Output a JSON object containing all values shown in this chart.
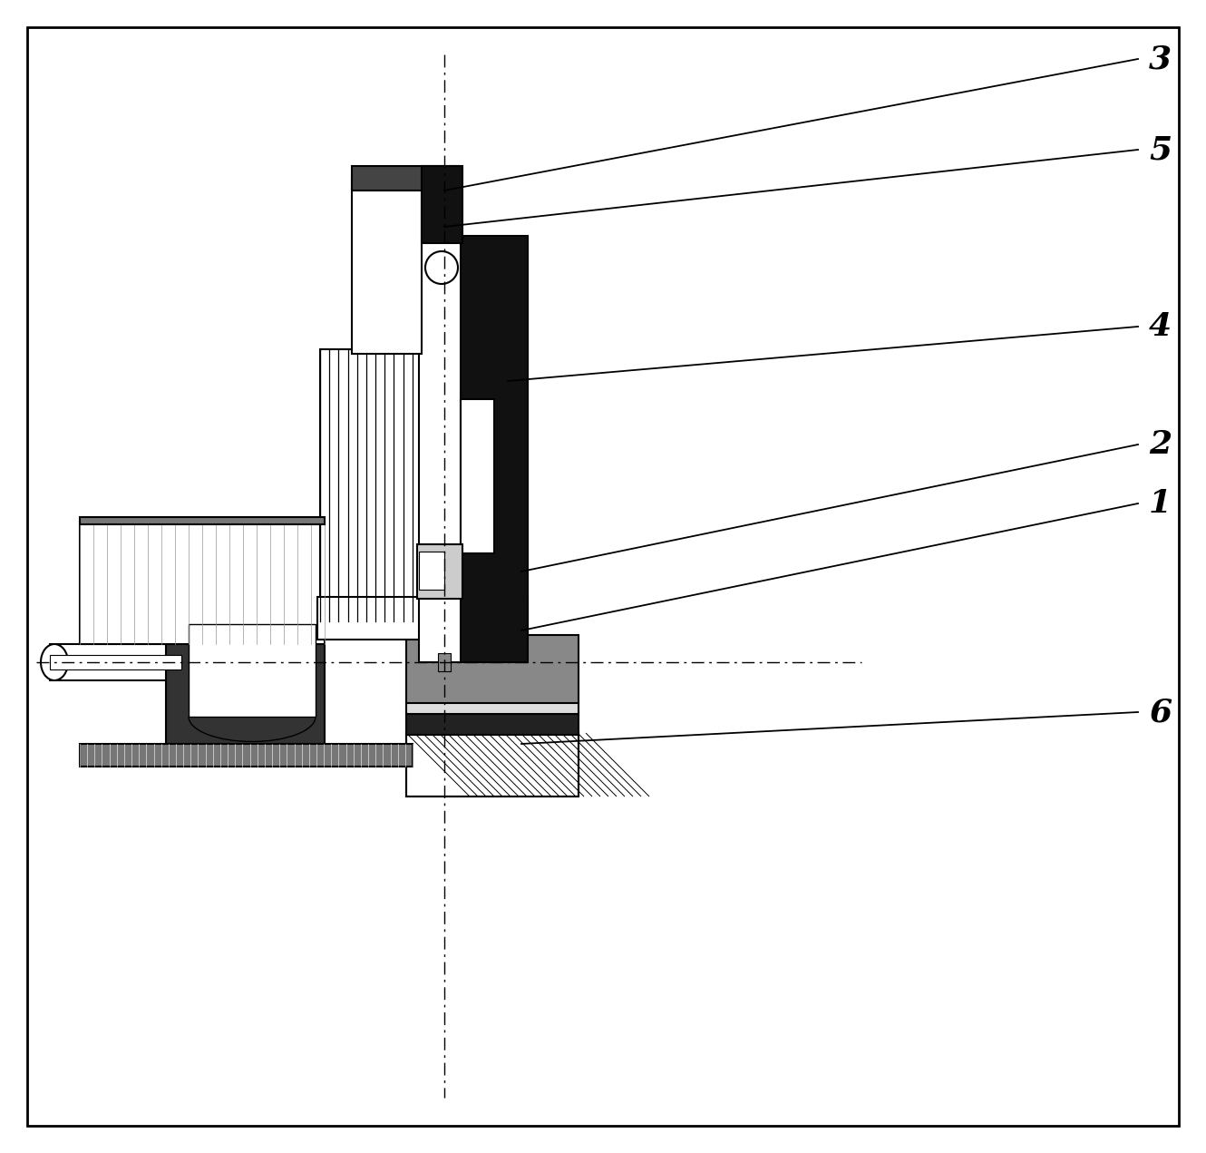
{
  "bg_color": "#ffffff",
  "line_color": "#000000",
  "labels": [
    [
      "3",
      490,
      210,
      1255,
      65
    ],
    [
      "5",
      490,
      250,
      1255,
      165
    ],
    [
      "4",
      560,
      420,
      1255,
      360
    ],
    [
      "2",
      575,
      630,
      1255,
      490
    ],
    [
      "1",
      575,
      695,
      1255,
      555
    ],
    [
      "6",
      575,
      820,
      1255,
      785
    ]
  ]
}
